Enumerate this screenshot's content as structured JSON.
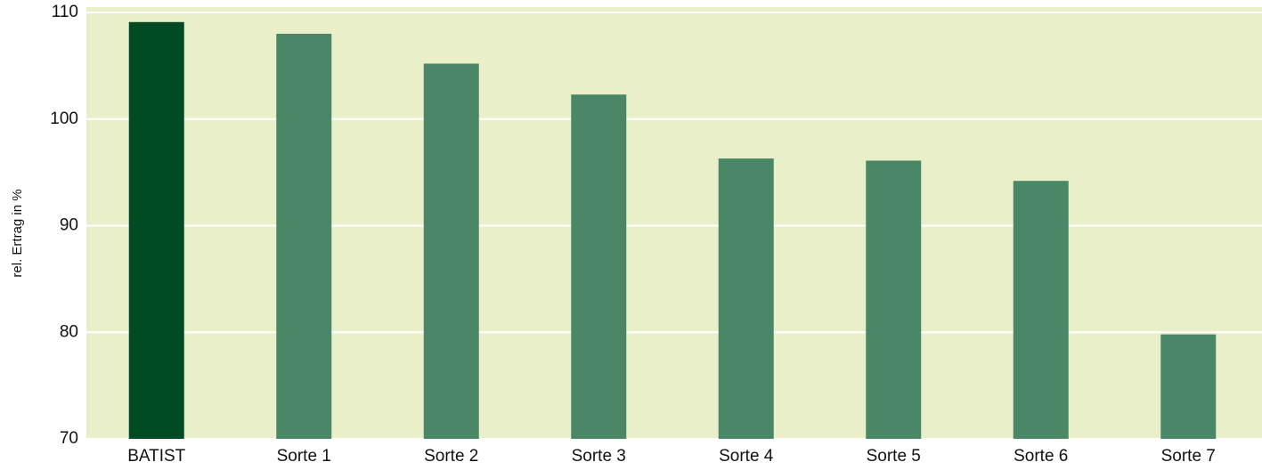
{
  "chart_data": {
    "type": "bar",
    "y_label": "rel. Ertrag in %",
    "categories": [
      "BATIST",
      "Sorte 1",
      "Sorte 2",
      "Sorte 3",
      "Sorte 4",
      "Sorte 5",
      "Sorte 6",
      "Sorte 7"
    ],
    "values": [
      109.1,
      108.0,
      105.2,
      102.3,
      96.3,
      96.1,
      94.2,
      79.8
    ],
    "colors": [
      "#004b23",
      "#4a8766",
      "#4a8766",
      "#4a8766",
      "#4a8766",
      "#4a8766",
      "#4a8766",
      "#4a8766"
    ],
    "ylim": [
      70,
      110
    ],
    "yticks": [
      70,
      80,
      90,
      100,
      110
    ],
    "grid": true,
    "background": "#e9f0c9",
    "grid_color": "#ffffff"
  }
}
